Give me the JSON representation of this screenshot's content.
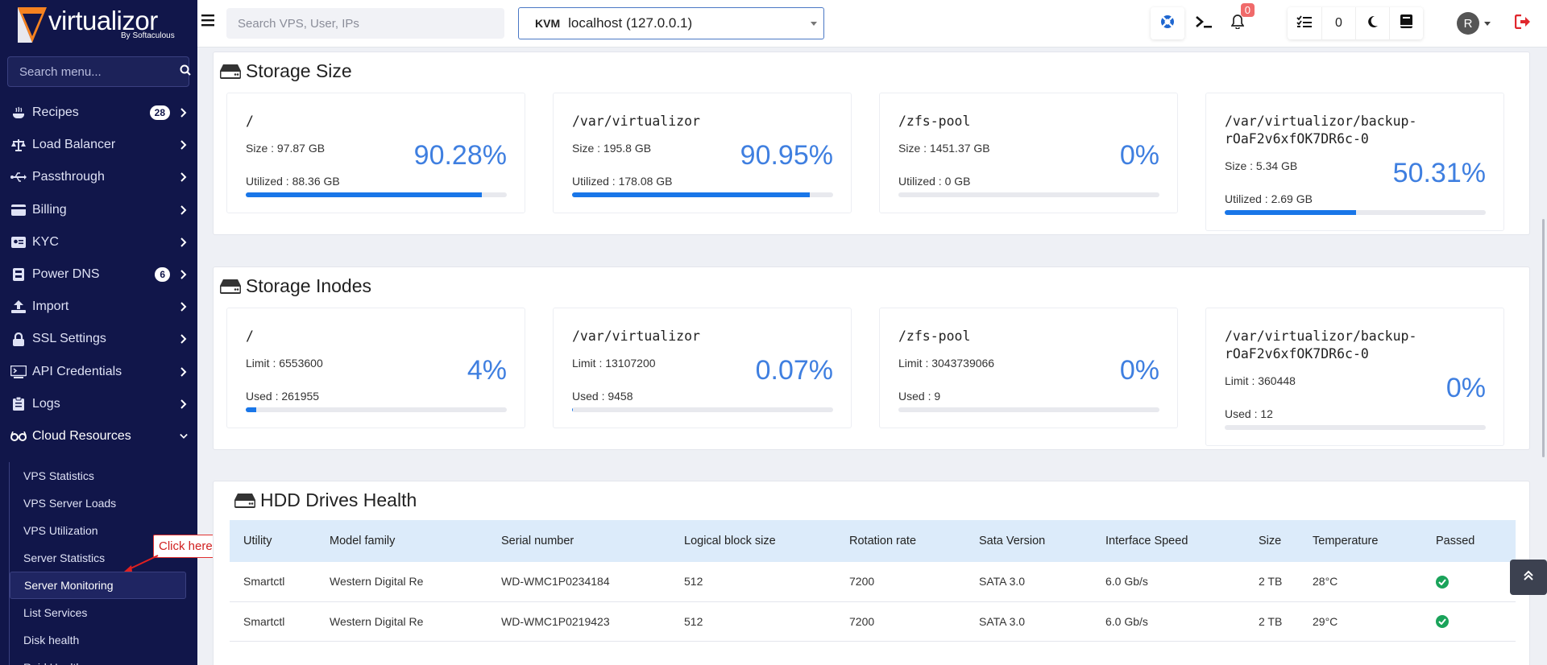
{
  "brand": {
    "name": "virtualizor",
    "by": "By Softaculous"
  },
  "sidebar": {
    "search_placeholder": "Search menu...",
    "items": [
      {
        "label": "Recipes",
        "badge": "28",
        "icon": "recipes-icon"
      },
      {
        "label": "Load Balancer",
        "badge": "",
        "icon": "balance-scale-icon"
      },
      {
        "label": "Passthrough",
        "badge": "",
        "icon": "usb-icon"
      },
      {
        "label": "Billing",
        "badge": "",
        "icon": "credit-card-icon"
      },
      {
        "label": "KYC",
        "badge": "",
        "icon": "id-card-icon"
      },
      {
        "label": "Power DNS",
        "badge": "6",
        "icon": "dns-icon"
      },
      {
        "label": "Import",
        "badge": "",
        "icon": "upload-icon"
      },
      {
        "label": "SSL Settings",
        "badge": "",
        "icon": "lock-icon"
      },
      {
        "label": "API Credentials",
        "badge": "",
        "icon": "terminal-icon"
      },
      {
        "label": "Logs",
        "badge": "",
        "icon": "clipboard-icon"
      },
      {
        "label": "Cloud Resources",
        "badge": "",
        "icon": "glasses-icon"
      }
    ],
    "submenu": [
      "VPS Statistics",
      "VPS Server Loads",
      "VPS Utilization",
      "Server Statistics",
      "Server Monitoring",
      "List Services",
      "Disk health",
      "Raid Health"
    ],
    "active_submenu": "Server Monitoring"
  },
  "callout": "Click here",
  "topbar": {
    "search_placeholder": "Search VPS, User, IPs",
    "server_type": "KVM",
    "server_name": "localhost (127.0.0.1)",
    "notifications": "0",
    "tasks_count": "0",
    "avatar_letter": "R"
  },
  "storage_size": {
    "title": "Storage Size",
    "cards": [
      {
        "path": "/",
        "line1": "Size : 97.87 GB",
        "line2": "Utilized : 88.36 GB",
        "percent": "90.28%",
        "fill": 0.9028
      },
      {
        "path": "/var/virtualizor",
        "line1": "Size : 195.8 GB",
        "line2": "Utilized : 178.08 GB",
        "percent": "90.95%",
        "fill": 0.9095
      },
      {
        "path": "/zfs-pool",
        "line1": "Size : 1451.37 GB",
        "line2": "Utilized : 0 GB",
        "percent": "0%",
        "fill": 0
      },
      {
        "path": "/var/virtualizor/backup-rOaF2v6xfOK7DR6c-0",
        "line1": "Size : 5.34 GB",
        "line2": "Utilized : 2.69 GB",
        "percent": "50.31%",
        "fill": 0.5031
      }
    ]
  },
  "storage_inodes": {
    "title": "Storage Inodes",
    "cards": [
      {
        "path": "/",
        "line1": "Limit : 6553600",
        "line2": "Used : 261955",
        "percent": "4%",
        "fill": 0.04
      },
      {
        "path": "/var/virtualizor",
        "line1": "Limit : 13107200",
        "line2": "Used : 9458",
        "percent": "0.07%",
        "fill": 0.0007
      },
      {
        "path": "/zfs-pool",
        "line1": "Limit : 3043739066",
        "line2": "Used : 9",
        "percent": "0%",
        "fill": 0
      },
      {
        "path": "/var/virtualizor/backup-rOaF2v6xfOK7DR6c-0",
        "line1": "Limit : 360448",
        "line2": "Used : 12",
        "percent": "0%",
        "fill": 0
      }
    ]
  },
  "hdd": {
    "title": "HDD Drives Health",
    "columns": [
      "Utility",
      "Model family",
      "Serial number",
      "Logical block size",
      "Rotation rate",
      "Sata Version",
      "Interface Speed",
      "Size",
      "Temperature",
      "Passed"
    ],
    "rows": [
      [
        "Smartctl",
        "Western Digital Re",
        "WD-WMC1P0234184",
        "512",
        "7200",
        "SATA 3.0",
        "6.0 Gb/s",
        "2 TB",
        "28°C"
      ],
      [
        "Smartctl",
        "Western Digital Re",
        "WD-WMC1P0219423",
        "512",
        "7200",
        "SATA 3.0",
        "6.0 Gb/s",
        "2 TB",
        "29°C"
      ]
    ],
    "passed_icon": "check-circle-icon"
  }
}
